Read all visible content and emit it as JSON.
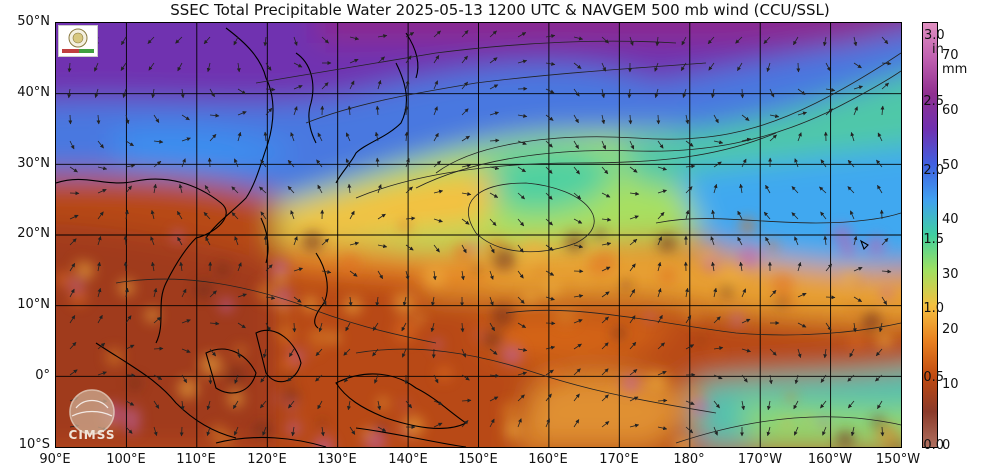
{
  "title": "SSEC Total Precipitable Water  2025-05-13 1200 UTC & NAVGEM 500 mb wind (CCU/SSL)",
  "map": {
    "lat_labels": [
      "50°N",
      "40°N",
      "30°N",
      "20°N",
      "10°N",
      "0°",
      "10°S"
    ],
    "lon_labels": [
      "90°E",
      "100°E",
      "110°E",
      "120°E",
      "130°E",
      "140°E",
      "150°E",
      "160°E",
      "170°E",
      "180°",
      "170°W",
      "160°W",
      "150°W"
    ],
    "lat_range": [
      -10,
      50
    ],
    "lon_range": [
      90,
      210
    ]
  },
  "colorbar": {
    "inch_unit": "in",
    "mm_unit": "mm",
    "inch_labels": [
      "3.0",
      "2.5",
      "2.0",
      "1.5",
      "1.0",
      "0.5",
      "0.0"
    ],
    "mm_labels": [
      "70",
      "60",
      "50",
      "40",
      "30",
      "20",
      "10",
      "0"
    ],
    "range_mm": [
      0,
      76
    ],
    "stops": [
      "#b07060",
      "#8a3a2a",
      "#c04a10",
      "#e88020",
      "#f5c040",
      "#a0e060",
      "#40d0a0",
      "#40a0f0",
      "#4060e0",
      "#7030b0",
      "#903090",
      "#c060b0",
      "#e090c0"
    ]
  },
  "logos": {
    "cimss": "CIMSS",
    "cimss_icon": "cimss-globe-logo",
    "ssec_icon": "ssec-seal-logo"
  }
}
